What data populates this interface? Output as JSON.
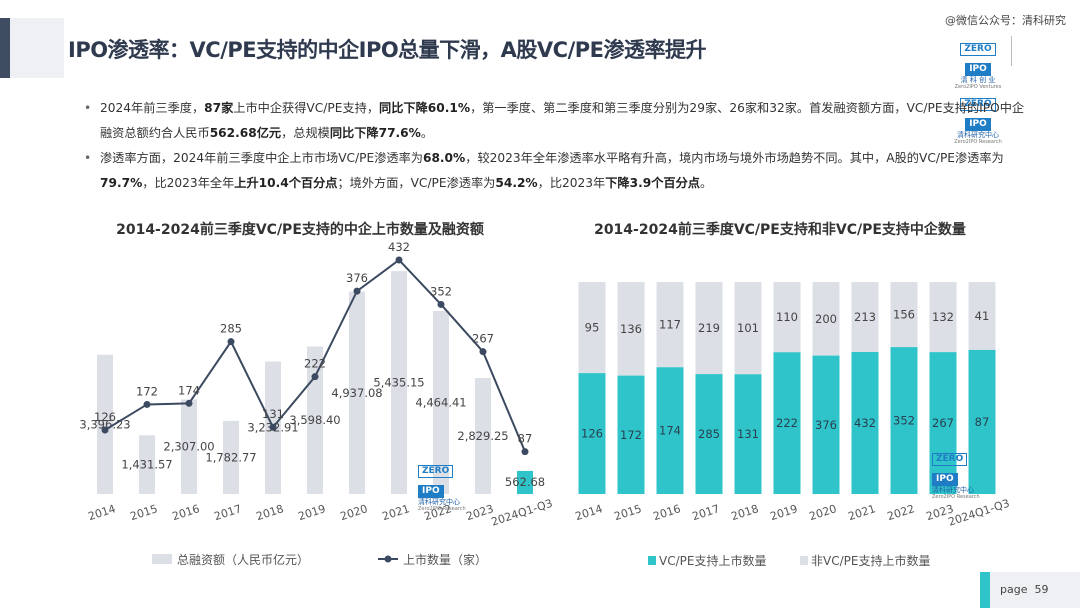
{
  "header": {
    "title": "IPO渗透率：VC/PE支持的中企IPO总量下滑，A股VC/PE渗透率提升",
    "watermark": "@微信公众号：清科研究",
    "logo": {
      "brand1": "ZERO",
      "brand2": "IPO",
      "cn": "清 科 创 业",
      "en": "Zero2IPO Ventures",
      "brand3": "ZERO",
      "brand4": "IPO",
      "cn2": "清科研究中心",
      "en2": "Zero2IPO Research"
    }
  },
  "bullets": [
    {
      "parts": [
        {
          "t": "2024年前三季度，",
          "b": false
        },
        {
          "t": "87家",
          "b": true
        },
        {
          "t": "上市中企获得VC/PE支持，",
          "b": false
        },
        {
          "t": "同比下降60.1%",
          "b": true
        },
        {
          "t": "，第一季度、第二季度和第三季度分别为29家、26家和32家。首发融资额方面，VC/PE支持的IPO中企融资总额约合人民币",
          "b": false
        },
        {
          "t": "562.68亿元",
          "b": true
        },
        {
          "t": "，总规模",
          "b": false
        },
        {
          "t": "同比下降77.6%",
          "b": true
        },
        {
          "t": "。",
          "b": false
        }
      ]
    },
    {
      "parts": [
        {
          "t": "渗透率方面，2024年前三季度中企上市市场VC/PE渗透率为",
          "b": false
        },
        {
          "t": "68.0%",
          "b": true
        },
        {
          "t": "，较2023年全年渗透率水平略有升高，境内市场与境外市场趋势不同。其中，A股的VC/PE渗透率为",
          "b": false
        },
        {
          "t": "79.7%",
          "b": true
        },
        {
          "t": "，比2023年全年",
          "b": false
        },
        {
          "t": "上升10.4个百分点",
          "b": true
        },
        {
          "t": "；境外方面，VC/PE渗透率为",
          "b": false
        },
        {
          "t": "54.2%",
          "b": true
        },
        {
          "t": "，比2023年",
          "b": false
        },
        {
          "t": "下降3.9个百分点",
          "b": true
        },
        {
          "t": "。",
          "b": false
        }
      ]
    }
  ],
  "chart_data": [
    {
      "type": "bar",
      "title": "2014-2024前三季度VC/PE支持的中企上市数量及融资额",
      "categories": [
        "2014",
        "2015",
        "2016",
        "2017",
        "2018",
        "2019",
        "2020",
        "2021",
        "2022",
        "2023",
        "2024Q1-Q3"
      ],
      "series": [
        {
          "name": "总融资额（人民币亿元）",
          "kind": "bar",
          "values": [
            3396.23,
            1431.57,
            2307.0,
            1782.77,
            3232.91,
            3598.4,
            4937.08,
            5435.15,
            4464.41,
            2829.25,
            562.68
          ],
          "labels": [
            "3,396.23",
            "1,431.57",
            "2,307.00",
            "1,782.77",
            "3,232.91",
            "3,598.40",
            "4,937.08",
            "5,435.15",
            "4,464.41",
            "2,829.25",
            "562.68"
          ],
          "color": "#dcdfe6",
          "last_color": "#2ec4c9"
        },
        {
          "name": "上市数量（家）",
          "kind": "line",
          "values": [
            126,
            172,
            174,
            285,
            131,
            222,
            376,
            432,
            352,
            267,
            87
          ],
          "color": "#3b4a60"
        }
      ],
      "bar_ylim": [
        0,
        6000
      ],
      "line_ylim": [
        0,
        500
      ]
    },
    {
      "type": "bar",
      "stacked": true,
      "title": "2014-2024前三季度VC/PE支持和非VC/PE支持中企数量",
      "categories": [
        "2014",
        "2015",
        "2016",
        "2017",
        "2018",
        "2019",
        "2020",
        "2021",
        "2022",
        "2023",
        "2024Q1-Q3"
      ],
      "series": [
        {
          "name": "VC/PE支持上市数量",
          "values": [
            126,
            172,
            174,
            285,
            131,
            222,
            376,
            432,
            352,
            267,
            87
          ],
          "color": "#2ec4c9"
        },
        {
          "name": "非VC/PE支持上市数量",
          "values": [
            95,
            136,
            117,
            219,
            101,
            110,
            200,
            213,
            156,
            132,
            41
          ],
          "color": "#dcdfe6"
        }
      ],
      "normalized": true
    }
  ],
  "page": {
    "label": "page",
    "number": "59"
  }
}
